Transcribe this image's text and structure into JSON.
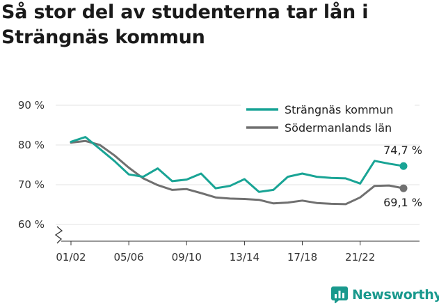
{
  "title": "Så stor del av studenterna tar lån i Strängnäs kommun",
  "brand": {
    "name": "Newsworthy",
    "icon": "bar-chart-icon",
    "color": "#19998d"
  },
  "chart_data": {
    "type": "line",
    "title": "Så stor del av studenterna tar lån i Strängnäs kommun",
    "xlabel": "",
    "ylabel": "",
    "ylim": [
      60,
      90
    ],
    "y_ticks": [
      60,
      70,
      80,
      90
    ],
    "y_tick_labels": [
      "60 %",
      "70 %",
      "80 %",
      "90 %"
    ],
    "x": [
      "01/02",
      "02/03",
      "03/04",
      "04/05",
      "05/06",
      "06/07",
      "07/08",
      "08/09",
      "09/10",
      "10/11",
      "11/12",
      "12/13",
      "13/14",
      "14/15",
      "15/16",
      "16/17",
      "17/18",
      "18/19",
      "19/20",
      "20/21",
      "21/22",
      "22/23",
      "23/24",
      "24/25"
    ],
    "x_tick_labels": [
      "01/02",
      "05/06",
      "09/10",
      "13/14",
      "17/18",
      "21/22"
    ],
    "grid": true,
    "legend_position": "top-right",
    "series": [
      {
        "name": "Strängnäs kommun",
        "color": "#19a495",
        "values": [
          80.8,
          82.0,
          79.0,
          76.0,
          72.6,
          72.0,
          74.1,
          70.9,
          71.3,
          72.8,
          69.1,
          69.7,
          71.4,
          68.2,
          68.7,
          72.0,
          72.8,
          72.0,
          71.7,
          71.6,
          70.3,
          76.0,
          75.3,
          74.7
        ],
        "end_label": "74,7 %"
      },
      {
        "name": "Södermanlands län",
        "color": "#707070",
        "values": [
          80.6,
          81.0,
          80.0,
          77.4,
          74.3,
          71.6,
          69.9,
          68.7,
          68.9,
          67.9,
          66.8,
          66.5,
          66.4,
          66.2,
          65.3,
          65.5,
          66.0,
          65.4,
          65.2,
          65.1,
          66.8,
          69.7,
          69.8,
          69.1
        ],
        "end_label": "69,1 %"
      }
    ]
  }
}
